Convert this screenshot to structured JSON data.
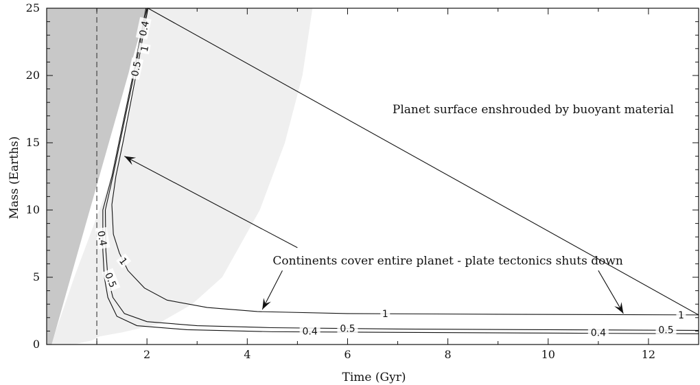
{
  "chart_data": {
    "type": "line",
    "xlabel": "Time (Gyr)",
    "ylabel": "Mass (Earths)",
    "xlim": [
      0,
      13
    ],
    "ylim": [
      0,
      25
    ],
    "xticks": [
      2,
      4,
      6,
      8,
      10,
      12
    ],
    "yticks": [
      0,
      5,
      10,
      15,
      20,
      25
    ],
    "grid": false,
    "vertical_reference": {
      "x": 1.0,
      "style": "dashed"
    },
    "regions": [
      {
        "name": "dark",
        "color": "#c8c8c8",
        "points": [
          [
            0,
            0
          ],
          [
            0,
            25
          ],
          [
            2.0,
            25
          ],
          [
            0.1,
            0
          ]
        ]
      },
      {
        "name": "light",
        "color": "#efefef",
        "points": [
          [
            0.1,
            0
          ],
          [
            0.18,
            1
          ],
          [
            0.32,
            2.5
          ],
          [
            0.55,
            5
          ],
          [
            0.85,
            8
          ],
          [
            1.2,
            11.5
          ],
          [
            1.5,
            15
          ],
          [
            1.8,
            20
          ],
          [
            2.0,
            25
          ],
          [
            5.3,
            25
          ],
          [
            5.1,
            20
          ],
          [
            4.75,
            15
          ],
          [
            4.25,
            10
          ],
          [
            3.5,
            5
          ],
          [
            2.9,
            3
          ],
          [
            2.2,
            1.5
          ],
          [
            1.5,
            0.9
          ],
          [
            1.05,
            0.6
          ],
          [
            0.9,
            0.3
          ],
          [
            0.6,
            0.05
          ],
          [
            0.3,
            0
          ]
        ]
      }
    ],
    "series": [
      {
        "label": "1",
        "values": [
          [
            1.3,
            10.4
          ],
          [
            1.33,
            8.2
          ],
          [
            1.45,
            6.8
          ],
          [
            1.62,
            5.5
          ],
          [
            1.95,
            4.2
          ],
          [
            2.4,
            3.3
          ],
          [
            3.2,
            2.75
          ],
          [
            4.2,
            2.45
          ],
          [
            6,
            2.3
          ],
          [
            9,
            2.25
          ],
          [
            13,
            2.2
          ],
          [
            2.02,
            25
          ],
          [
            1.9,
            22.5
          ],
          [
            1.78,
            20
          ],
          [
            1.65,
            17.5
          ],
          [
            1.52,
            15
          ],
          [
            1.38,
            12.5
          ],
          [
            1.3,
            10.4
          ]
        ]
      },
      {
        "label": "0.5",
        "values": [
          [
            2.0,
            25
          ],
          [
            1.87,
            22.5
          ],
          [
            1.74,
            20
          ],
          [
            1.6,
            17.5
          ],
          [
            1.46,
            15
          ],
          [
            1.32,
            12.5
          ],
          [
            1.17,
            10.0
          ],
          [
            1.18,
            7
          ],
          [
            1.22,
            5
          ],
          [
            1.32,
            3.5
          ],
          [
            1.55,
            2.3
          ],
          [
            2.0,
            1.7
          ],
          [
            3.0,
            1.4
          ],
          [
            4.5,
            1.25
          ],
          [
            7,
            1.15
          ],
          [
            10,
            1.1
          ],
          [
            13,
            1.05
          ]
        ]
      },
      {
        "label": "0.4",
        "values": [
          [
            1.98,
            25
          ],
          [
            1.85,
            22.5
          ],
          [
            1.72,
            20
          ],
          [
            1.58,
            17.5
          ],
          [
            1.44,
            15
          ],
          [
            1.3,
            12.5
          ],
          [
            1.12,
            10.0
          ],
          [
            1.12,
            7
          ],
          [
            1.15,
            5
          ],
          [
            1.22,
            3.5
          ],
          [
            1.4,
            2.1
          ],
          [
            1.8,
            1.4
          ],
          [
            2.8,
            1.1
          ],
          [
            4.5,
            0.95
          ],
          [
            7,
            0.9
          ],
          [
            10,
            0.85
          ],
          [
            13,
            0.8
          ]
        ]
      }
    ],
    "contour_labels": [
      {
        "text": "0.4",
        "x": 1.94,
        "y": 23.5,
        "rotate": -78
      },
      {
        "text": "1",
        "x": 1.95,
        "y": 22.0,
        "rotate": -78
      },
      {
        "text": "0.5",
        "x": 1.78,
        "y": 20.5,
        "rotate": -78
      },
      {
        "text": "0.4",
        "x": 1.11,
        "y": 7.9,
        "rotate": 80
      },
      {
        "text": "1",
        "x": 1.53,
        "y": 6.2,
        "rotate": 52
      },
      {
        "text": "0.5",
        "x": 1.28,
        "y": 4.8,
        "rotate": 68
      },
      {
        "text": "1",
        "x": 6.75,
        "y": 2.3,
        "rotate": 0
      },
      {
        "text": "0.5",
        "x": 6.0,
        "y": 1.2,
        "rotate": 0
      },
      {
        "text": "0.4",
        "x": 5.25,
        "y": 1.0,
        "rotate": 0
      },
      {
        "text": "1",
        "x": 12.65,
        "y": 2.2,
        "rotate": 0
      },
      {
        "text": "0.5",
        "x": 12.35,
        "y": 1.1,
        "rotate": 0
      },
      {
        "text": "0.4",
        "x": 11.0,
        "y": 0.9,
        "rotate": 0
      }
    ],
    "annotations": [
      {
        "text": "Planet surface enshrouded by buoyant material",
        "x": 9.7,
        "y": 17.5
      },
      {
        "text": "Continents cover entire planet - plate tectonics shuts down",
        "x": 8.0,
        "y": 6.25
      }
    ],
    "arrows": [
      {
        "from": [
          5.0,
          7.2
        ],
        "to": [
          1.55,
          14.0
        ]
      },
      {
        "from": [
          4.7,
          5.5
        ],
        "to": [
          4.3,
          2.6
        ]
      },
      {
        "from": [
          11.0,
          5.5
        ],
        "to": [
          11.5,
          2.3
        ]
      }
    ]
  }
}
